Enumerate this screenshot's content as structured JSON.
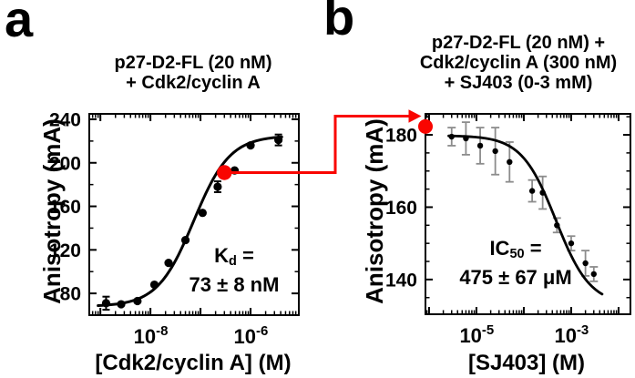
{
  "figure": {
    "panels": [
      {
        "label": "a",
        "title_lines": [
          "p27-D2-FL (20 nM)",
          "+ Cdk2/cyclin A"
        ],
        "y_axis_title": "Anisotropy (mA)",
        "x_axis_title": "[Cdk2/cyclin A] (M)",
        "annotation": {
          "pre": "K",
          "sub": "d",
          "post": " =",
          "value": "73 ± 8 nM"
        }
      },
      {
        "label": "b",
        "title_lines": [
          "p27-D2-FL (20 nM) +",
          "Cdk2/cyclin A (300 nM)",
          "+ SJ403 (0-3 mM)"
        ],
        "y_axis_title": "Anisotropy (mA)",
        "x_axis_title": "[SJ403] (M)",
        "annotation": {
          "pre": "IC",
          "sub": "50",
          "post": " =",
          "value": "475 ± 67 μM"
        }
      }
    ],
    "connector": {
      "meaning": "red elbow arrow linking highlighted point in panel a to starting anisotropy in panel b",
      "color": "#f90500"
    }
  },
  "colors": {
    "ink": "#000000",
    "highlight_red": "#f90500",
    "error_bar_gray": "#8c8c8c",
    "background": "#ffffff"
  },
  "chart_data": [
    {
      "type": "scatter",
      "panel": "a",
      "title": "p27-D2-FL (20 nM) + Cdk2/cyclin A",
      "xlabel": "[Cdk2/cyclin A] (M)",
      "ylabel": "Anisotropy (mA)",
      "xscale": "log",
      "grid": false,
      "xlim": [
        6e-10,
        9.2e-06
      ],
      "ylim": [
        60,
        245
      ],
      "x": [
        1.3e-09,
        2.6e-09,
        5.5e-09,
        1.2e-08,
        2.3e-08,
        5e-08,
        1.1e-07,
        2.2e-07,
        4.8e-07,
        1e-06,
        3.6e-06
      ],
      "y": [
        71,
        70,
        73,
        88,
        108,
        129,
        154,
        178,
        193,
        216,
        221
      ],
      "yerr": [
        6,
        0,
        0,
        0,
        0,
        0,
        0,
        5,
        0,
        0,
        5
      ],
      "highlight_point": {
        "x": 3e-07,
        "y": 191
      },
      "fit": {
        "model": "hill",
        "direction": "up",
        "bottom": 68,
        "top": 225,
        "x50": 7.3e-08,
        "hill_n": 1.2,
        "x_range": [
          9e-10,
          4.2e-06
        ],
        "result_label": "Kd = 73 ± 8 nM"
      },
      "yticks": [
        {
          "value": 80,
          "label": "80"
        },
        {
          "value": 120,
          "label": "120"
        },
        {
          "value": 160,
          "label": "160"
        },
        {
          "value": 200,
          "label": "200"
        },
        {
          "value": 240,
          "label": "240"
        }
      ],
      "ytick_minor_step": 20,
      "xticks_labeled": [
        {
          "value": 1e-08,
          "mantissa": "10",
          "exponent": "-8"
        },
        {
          "value": 1e-06,
          "mantissa": "10",
          "exponent": "-6"
        }
      ]
    },
    {
      "type": "scatter",
      "panel": "b",
      "title": "p27-D2-FL (20 nM) + Cdk2/cyclin A (300 nM) + SJ403 (0-3 mM)",
      "xlabel": "[SJ403] (M)",
      "ylabel": "Anisotropy (mA)",
      "xscale": "log",
      "grid": false,
      "xlim": [
        8.4e-07,
        0.0178
      ],
      "ylim": [
        130.4,
        185.8
      ],
      "x": [
        3e-06,
        6e-06,
        1.2e-05,
        2.5e-05,
        5e-05,
        0.00015,
        0.00025,
        0.0005,
        0.001,
        0.002,
        0.003
      ],
      "y": [
        179.5,
        179,
        177,
        175.5,
        172.5,
        164.5,
        164,
        155,
        150,
        144.5,
        141.5
      ],
      "yerr": [
        2.5,
        4.5,
        5,
        6.5,
        5.5,
        3,
        4.5,
        2,
        2,
        3.5,
        2
      ],
      "highlight_point": {
        "x": 8.4e-07,
        "y": 182.3
      },
      "fit": {
        "model": "hill",
        "direction": "down",
        "top": 179.8,
        "bottom": 133,
        "x50": 0.000475,
        "hill_n": 1.2,
        "x_range": [
          2.6e-06,
          0.0045
        ],
        "result_label": "IC50 = 475 ± 67 μM"
      },
      "yticks": [
        {
          "value": 140,
          "label": "140"
        },
        {
          "value": 160,
          "label": "160"
        },
        {
          "value": 180,
          "label": "180"
        }
      ],
      "ytick_minor_step": 5,
      "xticks_labeled": [
        {
          "value": 1e-05,
          "mantissa": "10",
          "exponent": "-5"
        },
        {
          "value": 0.001,
          "mantissa": "10",
          "exponent": "-3"
        }
      ]
    }
  ]
}
